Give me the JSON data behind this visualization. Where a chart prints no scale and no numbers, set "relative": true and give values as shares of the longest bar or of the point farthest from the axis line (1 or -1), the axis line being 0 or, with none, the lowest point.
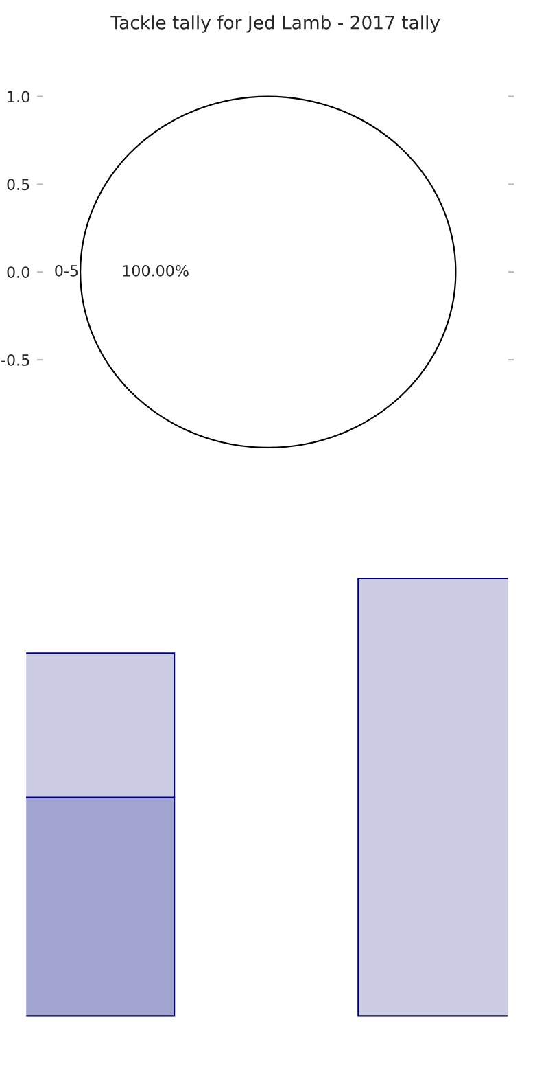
{
  "chart_data": [
    {
      "type": "pie",
      "title": "Tackle tally for Jed Lamb - 2017 tally",
      "categories": [
        "0-5"
      ],
      "values": [
        100
      ],
      "colors": [
        "#ffffff"
      ],
      "value_labels": [
        "100.00%"
      ],
      "annotations": [
        "1.0",
        "0.5",
        "0.0",
        "-0.5"
      ]
    },
    {
      "type": "bar",
      "relative": true,
      "stacked": true,
      "categories": [
        null,
        null
      ],
      "series": [
        {
          "color": "#a3a5d1",
          "values": [
            0.5,
            null
          ]
        },
        {
          "color": "#cccde5",
          "values": [
            0.33,
            1.0
          ]
        }
      ]
    }
  ]
}
